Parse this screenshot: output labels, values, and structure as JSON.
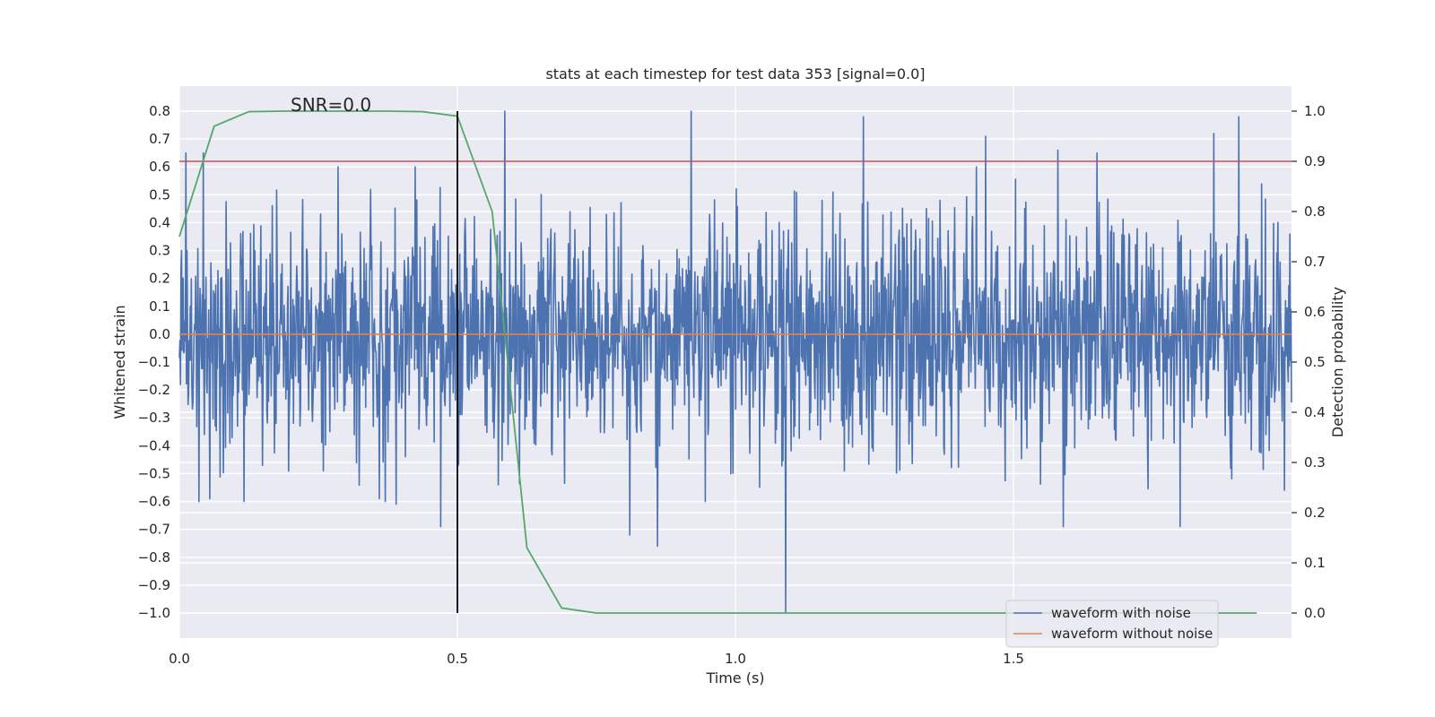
{
  "chart_data": {
    "type": "line",
    "title": "stats at each timestep for test data 353 [signal=0.0]",
    "xlabel": "Time (s)",
    "ylabel": "Whitened strain",
    "y2label": "Detection probability",
    "xlim": [
      0.0,
      2.0
    ],
    "ylim": [
      -1.09,
      0.89
    ],
    "y2lim": [
      -0.05,
      1.05
    ],
    "xticks": [
      0.0,
      0.5,
      1.0,
      1.5
    ],
    "xtick_labels": [
      "0.0",
      "0.5",
      "1.0",
      "1.5"
    ],
    "yticks": [
      0.8,
      0.7,
      0.6,
      0.5,
      0.4,
      0.3,
      0.2,
      0.1,
      0.0,
      -0.1,
      -0.2,
      -0.3,
      -0.4,
      -0.5,
      -0.6,
      -0.7,
      -0.8,
      -0.9,
      -1.0
    ],
    "ytick_labels": [
      "0.8",
      "0.7",
      "0.6",
      "0.5",
      "0.4",
      "0.3",
      "0.2",
      "0.1",
      "0.0",
      "−0.1",
      "−0.2",
      "−0.3",
      "−0.4",
      "−0.5",
      "−0.6",
      "−0.7",
      "−0.8",
      "−0.9",
      "−1.0"
    ],
    "y2ticks": [
      1.0,
      0.9,
      0.8,
      0.7,
      0.6,
      0.5,
      0.4,
      0.3,
      0.2,
      0.1,
      0.0
    ],
    "y2tick_labels": [
      "1.0",
      "0.9",
      "0.8",
      "0.7",
      "0.6",
      "0.5",
      "0.4",
      "0.3",
      "0.2",
      "0.1",
      "0.0"
    ],
    "grid": true,
    "legend_position": "bottom-right",
    "annotation": {
      "text": "SNR=0.0",
      "x": 0.2,
      "y": 0.8
    },
    "noise_waveform": {
      "name": "waveform with noise",
      "color": "#4c72b0",
      "x_start": 0.0,
      "x_end": 2.0,
      "samples": 2048,
      "seed": 353,
      "sigma": 0.21,
      "peaks": [
        {
          "x": 0.012,
          "y": 0.65
        },
        {
          "x": 0.043,
          "y": 0.65
        },
        {
          "x": 0.585,
          "y": 0.8
        },
        {
          "x": 0.92,
          "y": 0.8
        },
        {
          "x": 1.23,
          "y": 0.78
        },
        {
          "x": 1.45,
          "y": 0.71
        },
        {
          "x": 1.58,
          "y": 0.66
        },
        {
          "x": 1.65,
          "y": 0.65
        },
        {
          "x": 1.86,
          "y": 0.72
        },
        {
          "x": 1.905,
          "y": 0.78
        },
        {
          "x": 1.09,
          "y": -1.0
        },
        {
          "x": 0.47,
          "y": -0.69
        },
        {
          "x": 0.86,
          "y": -0.76
        },
        {
          "x": 0.81,
          "y": -0.72
        },
        {
          "x": 1.59,
          "y": -0.69
        },
        {
          "x": 1.8,
          "y": -0.69
        },
        {
          "x": 0.36,
          "y": -0.59
        },
        {
          "x": 0.39,
          "y": -0.61
        },
        {
          "x": 0.035,
          "y": -0.6
        },
        {
          "x": 0.055,
          "y": -0.59
        }
      ]
    },
    "clean_waveform": {
      "name": "waveform without noise",
      "color": "#dd8452",
      "x": [
        0.0,
        2.0
      ],
      "y": [
        0.0,
        0.0
      ]
    },
    "probability": {
      "name": "Detection probability",
      "color": "#55a868",
      "x": [
        0.0,
        0.0625,
        0.125,
        0.1875,
        0.25,
        0.3125,
        0.375,
        0.4375,
        0.5,
        0.5625,
        0.625,
        0.6875,
        0.75,
        0.8125,
        0.875,
        0.9375,
        1.0,
        1.0625,
        1.125,
        1.1875,
        1.25,
        1.3125,
        1.375,
        1.4375,
        1.5,
        1.5625,
        1.625,
        1.6875,
        1.75,
        1.8125,
        1.875,
        1.9375
      ],
      "y": [
        0.75,
        0.97,
        0.999,
        1.0,
        1.0,
        1.0,
        1.0,
        0.999,
        0.99,
        0.8,
        0.13,
        0.01,
        0.0,
        0.0,
        0.0,
        0.0,
        0.0,
        0.0,
        0.0,
        0.0,
        0.0,
        0.0,
        0.0,
        0.0,
        0.0,
        0.0,
        0.0,
        0.0,
        0.0,
        0.0,
        0.0,
        0.0
      ]
    },
    "threshold": {
      "color": "#c44e52",
      "y2": 0.9
    },
    "marker_line": {
      "color": "#000000",
      "x": 0.5,
      "y_from": -1.0,
      "y_to": 0.8
    },
    "legend": [
      {
        "name": "waveform with noise",
        "color": "#4c72b0"
      },
      {
        "name": "waveform without noise",
        "color": "#dd8452"
      }
    ]
  }
}
